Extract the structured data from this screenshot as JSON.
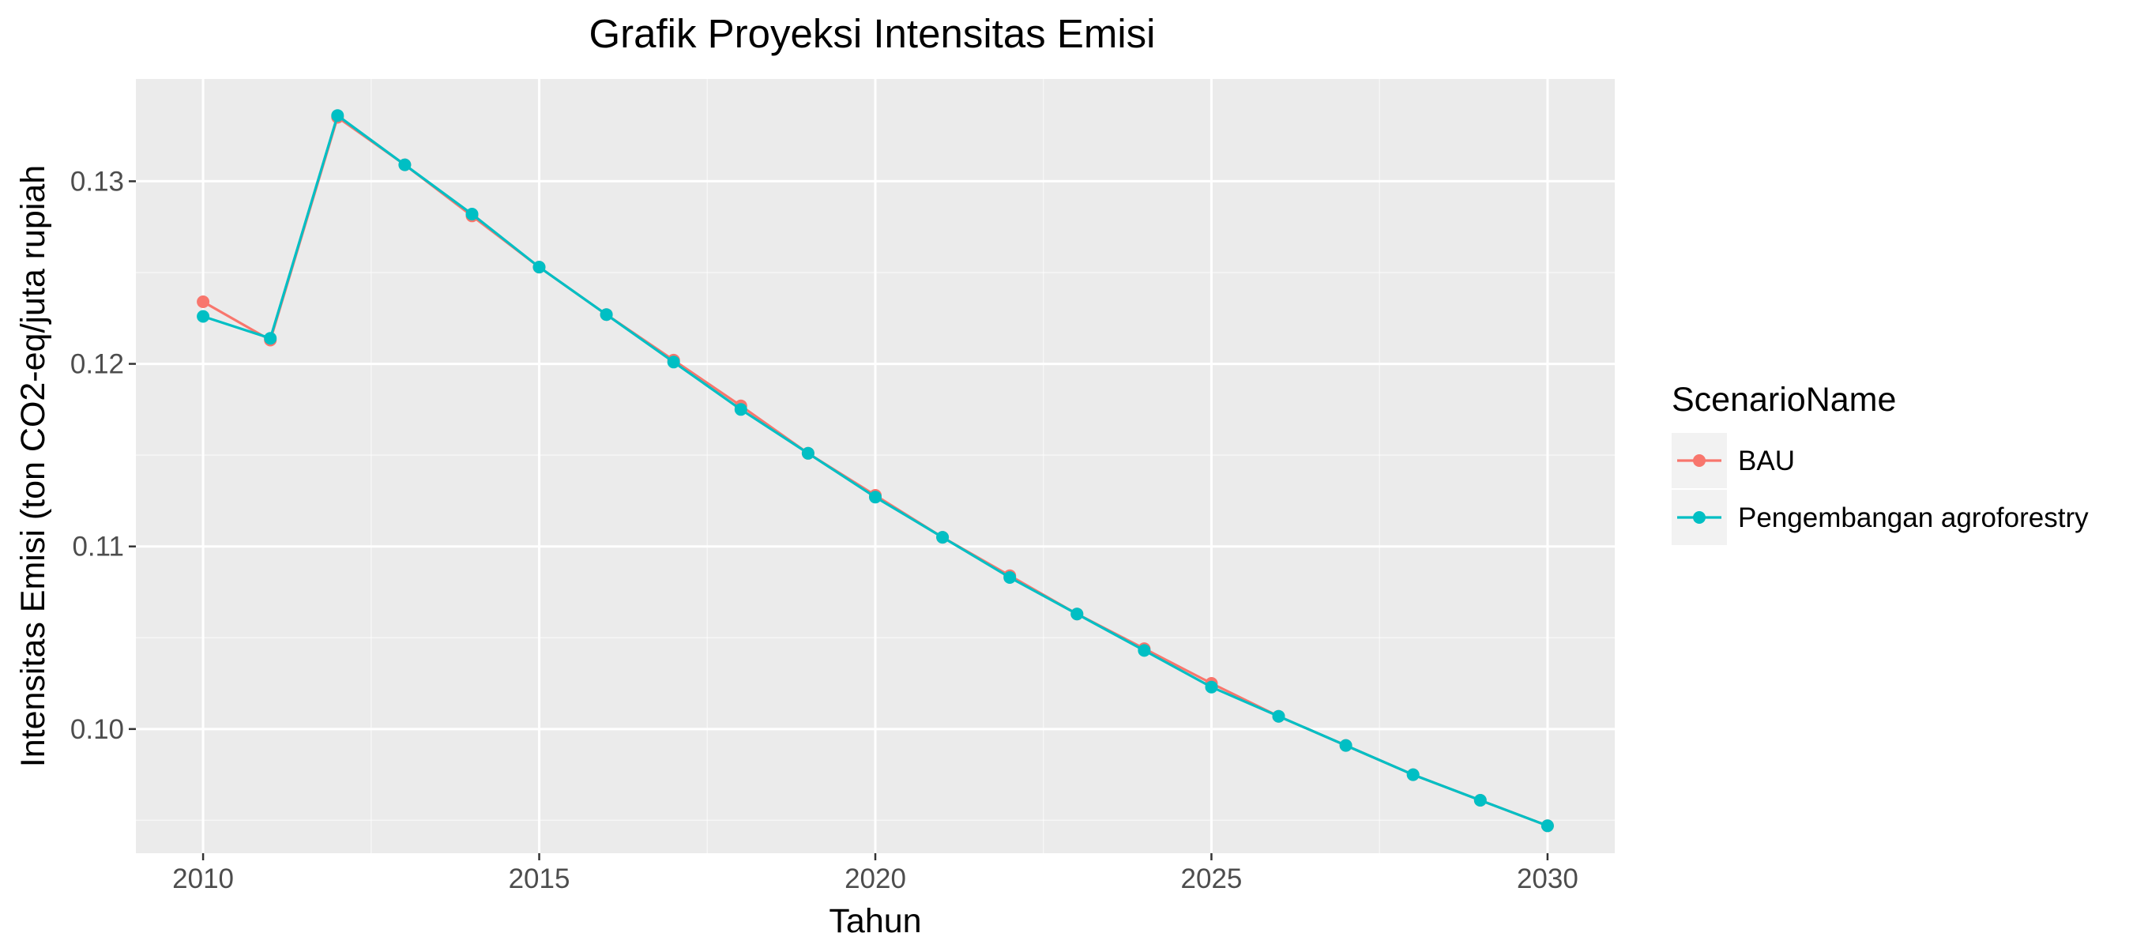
{
  "chart_data": {
    "type": "line",
    "title": "Grafik Proyeksi Intensitas Emisi",
    "xlabel": "Tahun",
    "ylabel": "Intensitas Emisi (ton CO2-eq/juta rupiah",
    "xlim": [
      2009,
      2031
    ],
    "ylim": [
      0.0932,
      0.1356
    ],
    "x_ticks": [
      2010,
      2015,
      2020,
      2025,
      2030
    ],
    "x_tick_labels": [
      "2010",
      "2015",
      "2020",
      "2025",
      "2030"
    ],
    "y_ticks": [
      0.1,
      0.11,
      0.12,
      0.13
    ],
    "y_tick_labels": [
      "0.10",
      "0.11",
      "0.12",
      "0.13"
    ],
    "x_minor": [
      2012.5,
      2017.5,
      2022.5,
      2027.5
    ],
    "y_minor": [
      0.095,
      0.105,
      0.115,
      0.125
    ],
    "grid": true,
    "legend": {
      "title": "ScenarioName",
      "placement": "right"
    },
    "x": [
      2010,
      2011,
      2012,
      2013,
      2014,
      2015,
      2016,
      2017,
      2018,
      2019,
      2020,
      2021,
      2022,
      2023,
      2024,
      2025,
      2026,
      2027,
      2028,
      2029,
      2030
    ],
    "series": [
      {
        "name": "BAU",
        "color": "#F8766D",
        "values": [
          0.1234,
          0.1213,
          0.1335,
          0.1309,
          0.1281,
          0.1253,
          0.1227,
          0.1202,
          0.1177,
          0.1151,
          0.1128,
          0.1105,
          0.1084,
          0.1063,
          0.1044,
          0.1025,
          0.1007,
          0.0991,
          0.0975,
          0.0961,
          0.0947
        ]
      },
      {
        "name": "Pengembangan agroforestry",
        "color": "#00BFC4",
        "values": [
          0.1226,
          0.1214,
          0.1336,
          0.1309,
          0.1282,
          0.1253,
          0.1227,
          0.1201,
          0.1175,
          0.1151,
          0.1127,
          0.1105,
          0.1083,
          0.1063,
          0.1043,
          0.1023,
          0.1007,
          0.0991,
          0.0975,
          0.0961,
          0.0947
        ]
      }
    ]
  },
  "style": {
    "panel_bg": "#EBEBEB",
    "grid_major": "#FFFFFF",
    "tick_color": "#333333"
  }
}
